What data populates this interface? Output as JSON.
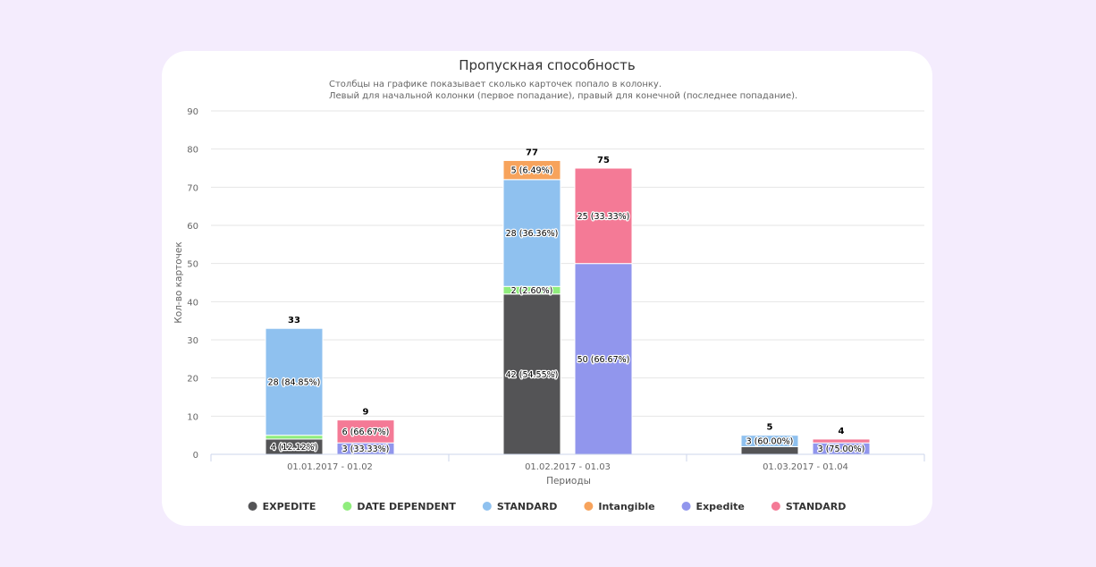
{
  "chart_data": {
    "type": "bar",
    "title": "Пропускная способность",
    "subtitle": [
      "Столбцы на графике показывает сколько карточек попало в колонку.",
      "Левый для начальной колонки (первое попадание), правый для конечной (последнее попадание)."
    ],
    "xlabel": "Периоды",
    "ylabel": "Кол-во карточек",
    "ylim": [
      0,
      90
    ],
    "yticks": [
      0,
      10,
      20,
      30,
      40,
      50,
      60,
      70,
      80,
      90
    ],
    "grid": true,
    "legend_position": "bottom",
    "categories": [
      "01.01.2017 - 01.02",
      "01.02.2017 - 01.03",
      "01.03.2017 - 01.04"
    ],
    "stacks": [
      {
        "name": "start",
        "series": [
          {
            "name": "EXPEDITE",
            "color": "#545456",
            "values": [
              4,
              42,
              2
            ],
            "labels": [
              "4 (12.12%)",
              "42 (54.55%)",
              ""
            ]
          },
          {
            "name": "DATE DEPENDENT",
            "color": "#90ed7d",
            "values": [
              1,
              2,
              0
            ],
            "labels": [
              "",
              "2 (2.60%)",
              ""
            ]
          },
          {
            "name": "STANDARD",
            "color": "#8fc1ef",
            "values": [
              28,
              28,
              3
            ],
            "labels": [
              "28 (84.85%)",
              "28 (36.36%)",
              "3 (60.00%)"
            ]
          },
          {
            "name": "Intangible",
            "color": "#f7a35c",
            "values": [
              0,
              5,
              0
            ],
            "labels": [
              "",
              "5 (6.49%)",
              ""
            ]
          }
        ],
        "totals": [
          "33",
          "77",
          "5"
        ]
      },
      {
        "name": "end",
        "series": [
          {
            "name": "Expedite",
            "color": "#9196ed",
            "values": [
              3,
              50,
              3
            ],
            "labels": [
              "3 (33.33%)",
              "50 (66.67%)",
              "3 (75.00%)"
            ]
          },
          {
            "name": "STANDARD",
            "color": "#f47a96",
            "values": [
              6,
              25,
              1
            ],
            "labels": [
              "6 (66.67%)",
              "25 (33.33%)",
              ""
            ]
          }
        ],
        "totals": [
          "9",
          "75",
          "4"
        ]
      }
    ],
    "legend": [
      {
        "name": "EXPEDITE",
        "color": "#545456"
      },
      {
        "name": "DATE DEPENDENT",
        "color": "#90ed7d"
      },
      {
        "name": "STANDARD",
        "color": "#8fc1ef"
      },
      {
        "name": "Intangible",
        "color": "#f7a35c"
      },
      {
        "name": "Expedite",
        "color": "#9196ed"
      },
      {
        "name": "STANDARD",
        "color": "#f47a96"
      }
    ]
  }
}
